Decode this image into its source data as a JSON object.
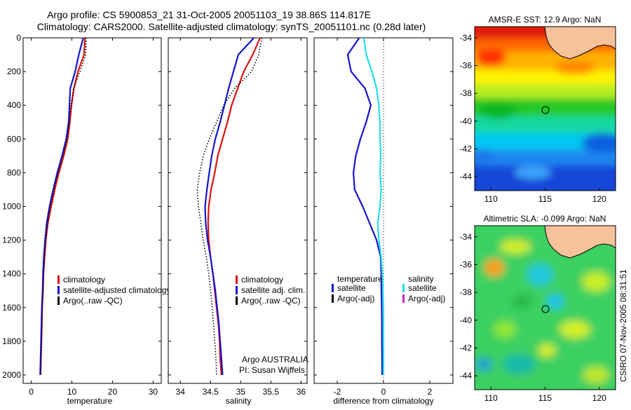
{
  "header": {
    "line1": "Argo profile: CS 5900853_21 31-Oct-2005 20051103_19 38.86S 114.817E",
    "line2": "Climatology: CARS2000. Satellite-adjusted climatology: synTS_20051101.nc (0.28d later)"
  },
  "credit": "CSIRO 07-Nov-2005 08:31:51",
  "colors": {
    "climatology": "#dd1111",
    "satellite": "#1515cc",
    "argo": "#000000",
    "satellite_salinity": "#22e0e8",
    "argo_adj_salinity": "#cc22cc",
    "land": "#f7c19b"
  },
  "chart_data": [
    {
      "type": "line",
      "xlabel": "temperature",
      "ylim": [
        0,
        2050
      ],
      "xlim": [
        -2,
        32
      ],
      "xticks": [
        0,
        10,
        20,
        30
      ],
      "yticks": [
        0,
        200,
        400,
        600,
        800,
        1000,
        1200,
        1400,
        1600,
        1800,
        2000
      ],
      "legend_position": "lower-right",
      "series": [
        {
          "name": "climatology",
          "style": "solid",
          "color_key": "climatology",
          "points": [
            [
              13.2,
              0
            ],
            [
              13.0,
              100
            ],
            [
              11.5,
              200
            ],
            [
              10.5,
              300
            ],
            [
              9.9,
              400
            ],
            [
              9.5,
              500
            ],
            [
              9.0,
              600
            ],
            [
              8.0,
              700
            ],
            [
              6.8,
              800
            ],
            [
              5.8,
              900
            ],
            [
              4.9,
              1000
            ],
            [
              4.1,
              1100
            ],
            [
              3.6,
              1200
            ],
            [
              3.3,
              1300
            ],
            [
              3.0,
              1400
            ],
            [
              2.9,
              1500
            ],
            [
              2.7,
              1600
            ],
            [
              2.6,
              1700
            ],
            [
              2.5,
              1800
            ],
            [
              2.4,
              1900
            ],
            [
              2.3,
              2000
            ]
          ]
        },
        {
          "name": "satellite-adjusted climatology",
          "style": "solid",
          "color_key": "satellite",
          "points": [
            [
              12.8,
              0
            ],
            [
              11.7,
              100
            ],
            [
              10.8,
              200
            ],
            [
              9.6,
              300
            ],
            [
              9.4,
              400
            ],
            [
              9.2,
              500
            ],
            [
              8.6,
              600
            ],
            [
              7.6,
              700
            ],
            [
              6.4,
              800
            ],
            [
              5.4,
              900
            ],
            [
              4.5,
              1000
            ],
            [
              3.8,
              1100
            ],
            [
              3.4,
              1200
            ],
            [
              3.1,
              1300
            ],
            [
              2.9,
              1400
            ],
            [
              2.8,
              1500
            ],
            [
              2.6,
              1600
            ],
            [
              2.5,
              1700
            ],
            [
              2.4,
              1800
            ],
            [
              2.3,
              1900
            ],
            [
              2.2,
              2000
            ]
          ]
        },
        {
          "name": "Argo(..raw -QC)",
          "style": "dotted",
          "color_key": "argo",
          "points": [
            [
              13.5,
              0
            ],
            [
              13.4,
              100
            ],
            [
              12.0,
              200
            ],
            [
              10.4,
              300
            ],
            [
              9.8,
              400
            ],
            [
              9.4,
              500
            ],
            [
              8.8,
              600
            ],
            [
              7.8,
              700
            ],
            [
              6.6,
              800
            ],
            [
              5.6,
              900
            ],
            [
              4.7,
              1000
            ],
            [
              4.0,
              1100
            ],
            [
              3.5,
              1200
            ],
            [
              3.2,
              1300
            ],
            [
              3.0,
              1400
            ],
            [
              2.8,
              1500
            ],
            [
              2.7,
              1600
            ],
            [
              2.6,
              1700
            ],
            [
              2.5,
              1800
            ],
            [
              2.4,
              1900
            ],
            [
              2.3,
              2000
            ]
          ]
        }
      ]
    },
    {
      "type": "line",
      "xlabel": "salinity",
      "ylim": [
        0,
        2050
      ],
      "xlim": [
        33.8,
        36.1
      ],
      "xticks": [
        34,
        34.5,
        35,
        35.5,
        36
      ],
      "tick_labels": [
        "34",
        "34.5",
        "35",
        "35.5",
        "36"
      ],
      "legend_position": "lower-right",
      "annotations": [
        "Argo AUSTRALIA",
        "PI: Susan Wijffels"
      ],
      "series": [
        {
          "name": "climatology",
          "style": "solid",
          "color_key": "climatology",
          "points": [
            [
              35.32,
              0
            ],
            [
              35.2,
              100
            ],
            [
              35.05,
              200
            ],
            [
              34.95,
              300
            ],
            [
              34.85,
              400
            ],
            [
              34.78,
              500
            ],
            [
              34.7,
              600
            ],
            [
              34.62,
              700
            ],
            [
              34.57,
              800
            ],
            [
              34.51,
              900
            ],
            [
              34.47,
              1000
            ],
            [
              34.46,
              1100
            ],
            [
              34.47,
              1200
            ],
            [
              34.5,
              1300
            ],
            [
              34.54,
              1400
            ],
            [
              34.57,
              1500
            ],
            [
              34.6,
              1600
            ],
            [
              34.63,
              1700
            ],
            [
              34.65,
              1800
            ],
            [
              34.66,
              1900
            ],
            [
              34.68,
              2000
            ]
          ]
        },
        {
          "name": "satellite adj. clim.",
          "style": "solid",
          "color_key": "satellite",
          "points": [
            [
              35.22,
              0
            ],
            [
              34.96,
              100
            ],
            [
              34.88,
              200
            ],
            [
              34.8,
              300
            ],
            [
              34.73,
              400
            ],
            [
              34.66,
              500
            ],
            [
              34.58,
              600
            ],
            [
              34.52,
              700
            ],
            [
              34.48,
              800
            ],
            [
              34.44,
              900
            ],
            [
              34.41,
              1000
            ],
            [
              34.42,
              1100
            ],
            [
              34.45,
              1200
            ],
            [
              34.5,
              1300
            ],
            [
              34.54,
              1400
            ],
            [
              34.58,
              1500
            ],
            [
              34.61,
              1600
            ],
            [
              34.64,
              1700
            ],
            [
              34.66,
              1800
            ],
            [
              34.68,
              1900
            ],
            [
              34.7,
              2000
            ]
          ]
        },
        {
          "name": "Argo(..raw -QC)",
          "style": "dotted",
          "color_key": "argo",
          "points": [
            [
              35.35,
              0
            ],
            [
              35.3,
              100
            ],
            [
              35.18,
              200
            ],
            [
              34.9,
              300
            ],
            [
              34.72,
              400
            ],
            [
              34.6,
              500
            ],
            [
              34.48,
              600
            ],
            [
              34.38,
              700
            ],
            [
              34.32,
              800
            ],
            [
              34.28,
              900
            ],
            [
              34.3,
              1000
            ],
            [
              34.34,
              1100
            ],
            [
              34.38,
              1200
            ],
            [
              34.43,
              1300
            ],
            [
              34.47,
              1400
            ],
            [
              34.5,
              1500
            ],
            [
              34.53,
              1600
            ],
            [
              34.55,
              1700
            ],
            [
              34.57,
              1800
            ],
            [
              34.59,
              1900
            ],
            [
              34.6,
              2000
            ]
          ]
        }
      ]
    },
    {
      "type": "line",
      "xlabel": "difference from climatology",
      "ylim": [
        0,
        2050
      ],
      "xlim": [
        -3,
        3
      ],
      "xticks": [
        -2,
        0,
        2
      ],
      "legend_position": "lower-center",
      "legend_groups": [
        {
          "title": "temperature",
          "items": [
            "satellite",
            "Argo(-adj)"
          ]
        },
        {
          "title": "salinity",
          "items": [
            "satellite",
            "Argo(-adj)"
          ]
        }
      ],
      "series": [
        {
          "name": "satellite",
          "group": "temperature",
          "style": "solid",
          "color_key": "satellite",
          "points": [
            [
              -1.05,
              0
            ],
            [
              -1.55,
              100
            ],
            [
              -1.4,
              200
            ],
            [
              -0.8,
              300
            ],
            [
              -0.55,
              400
            ],
            [
              -0.75,
              500
            ],
            [
              -1.0,
              600
            ],
            [
              -1.2,
              700
            ],
            [
              -1.3,
              800
            ],
            [
              -1.25,
              900
            ],
            [
              -0.9,
              1000
            ],
            [
              -0.6,
              1100
            ],
            [
              -0.3,
              1200
            ],
            [
              -0.12,
              1300
            ],
            [
              -0.1,
              1400
            ],
            [
              -0.09,
              1500
            ],
            [
              -0.08,
              1600
            ],
            [
              -0.07,
              1700
            ],
            [
              -0.07,
              1800
            ],
            [
              -0.06,
              1900
            ],
            [
              -0.06,
              2000
            ]
          ]
        },
        {
          "name": "satellite",
          "group": "salinity",
          "style": "solid",
          "color_key": "satellite_salinity",
          "points": [
            [
              -0.85,
              0
            ],
            [
              -0.75,
              100
            ],
            [
              -0.5,
              200
            ],
            [
              -0.3,
              300
            ],
            [
              -0.2,
              400
            ],
            [
              -0.15,
              500
            ],
            [
              -0.15,
              600
            ],
            [
              -0.12,
              700
            ],
            [
              -0.15,
              800
            ],
            [
              -0.1,
              900
            ],
            [
              -0.15,
              1000
            ],
            [
              -0.25,
              1100
            ],
            [
              -0.2,
              1200
            ],
            [
              -0.1,
              1300
            ],
            [
              -0.05,
              1400
            ],
            [
              -0.02,
              1500
            ],
            [
              0.0,
              1600
            ],
            [
              0.0,
              1700
            ],
            [
              0.0,
              1800
            ],
            [
              0.0,
              1900
            ],
            [
              0.0,
              2000
            ]
          ]
        }
      ],
      "zero_line": "dotted"
    },
    {
      "type": "heatmap",
      "title": "AMSR-E SST: 12.9 Argo: NaN",
      "xlim": [
        108.5,
        121.5
      ],
      "ylim": [
        -45,
        -33.2
      ],
      "xticks": [
        110,
        115,
        120
      ],
      "yticks": [
        -34,
        -36,
        -38,
        -40,
        -42,
        -44
      ],
      "marker": [
        114.817,
        -38.86
      ],
      "colormap": "jet"
    },
    {
      "type": "heatmap",
      "title": "Altimetric SLA: -0.099 Argo: NaN",
      "xlim": [
        108.5,
        121.5
      ],
      "ylim": [
        -45,
        -33.2
      ],
      "xticks": [
        110,
        115,
        120
      ],
      "yticks": [
        -34,
        -36,
        -38,
        -40,
        -42,
        -44
      ],
      "marker": [
        114.817,
        -38.86
      ],
      "colormap": "jet"
    }
  ]
}
